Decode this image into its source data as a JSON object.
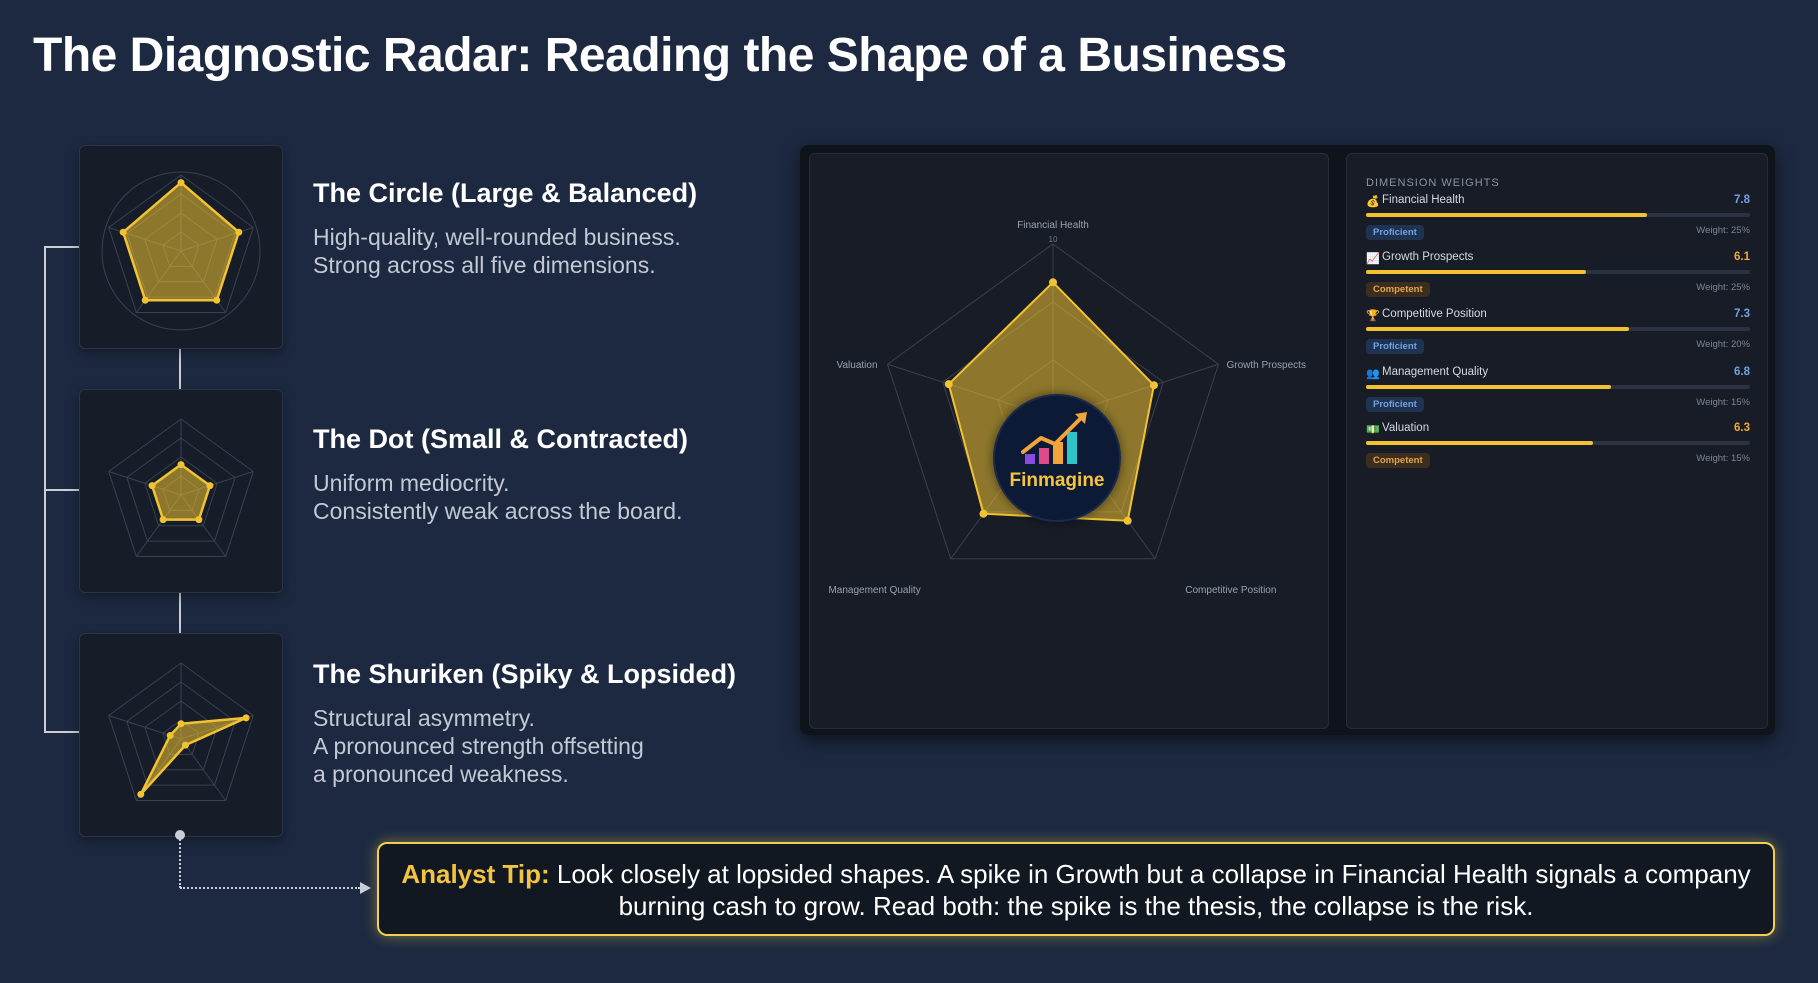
{
  "title": "The Diagnostic Radar: Reading the Shape of a Business",
  "shapes": [
    {
      "heading": "The Circle (Large & Balanced)",
      "lines": [
        "High-quality, well-rounded business.",
        "Strong across all five dimensions."
      ],
      "values": [
        9,
        8,
        8,
        8,
        8
      ]
    },
    {
      "heading": "The Dot (Small & Contracted)",
      "lines": [
        "Uniform mediocrity.",
        "Consistently weak across the board."
      ],
      "values": [
        4,
        4,
        4,
        4,
        4
      ]
    },
    {
      "heading": "The Shuriken (Spiky & Lopsided)",
      "lines": [
        "Structural asymmetry.",
        "A pronounced strength offsetting",
        "a pronounced weakness."
      ],
      "values": [
        2,
        9,
        1,
        9,
        1.5
      ]
    }
  ],
  "radar": {
    "axes": [
      "Financial Health",
      "Growth Prospects",
      "Competitive Position",
      "Management Quality",
      "Valuation"
    ],
    "scale_label": "10",
    "max": 10,
    "values": [
      7.8,
      6.1,
      7.3,
      6.8,
      6.3
    ]
  },
  "logo": {
    "text": "Finmagine"
  },
  "weights": {
    "title": "DIMENSION WEIGHTS",
    "items": [
      {
        "icon": "money-bag-icon",
        "glyph": "💰",
        "name": "Financial Health",
        "score": "7.8",
        "value": 7.8,
        "level": "Proficient",
        "weight": "Weight: 25%",
        "score_color": "#6fa2e6"
      },
      {
        "icon": "chart-icon",
        "glyph": "📈",
        "name": "Growth Prospects",
        "score": "6.1",
        "value": 6.1,
        "level": "Competent",
        "weight": "Weight: 25%",
        "score_color": "#f2a73b"
      },
      {
        "icon": "trophy-icon",
        "glyph": "🏆",
        "name": "Competitive Position",
        "score": "7.3",
        "value": 7.3,
        "level": "Proficient",
        "weight": "Weight: 20%",
        "score_color": "#6fa2e6"
      },
      {
        "icon": "management-icon",
        "glyph": "👥",
        "name": "Management Quality",
        "score": "6.8",
        "value": 6.8,
        "level": "Proficient",
        "weight": "Weight: 15%",
        "score_color": "#6fa2e6"
      },
      {
        "icon": "valuation-icon",
        "glyph": "💵",
        "name": "Valuation",
        "score": "6.3",
        "value": 6.3,
        "level": "Competent",
        "weight": "Weight: 15%",
        "score_color": "#f2a73b"
      }
    ]
  },
  "tip": {
    "label": "Analyst Tip:",
    "text": " Look closely at lopsided shapes. A spike in Growth but a collapse in Financial Health signals a company burning cash to grow. Read both: the spike is the thesis, the collapse is the risk."
  },
  "colors": {
    "accent": "#f1c232",
    "background": "#1c2940",
    "proficient": "#6fa2e6",
    "competent": "#e2a54c"
  }
}
